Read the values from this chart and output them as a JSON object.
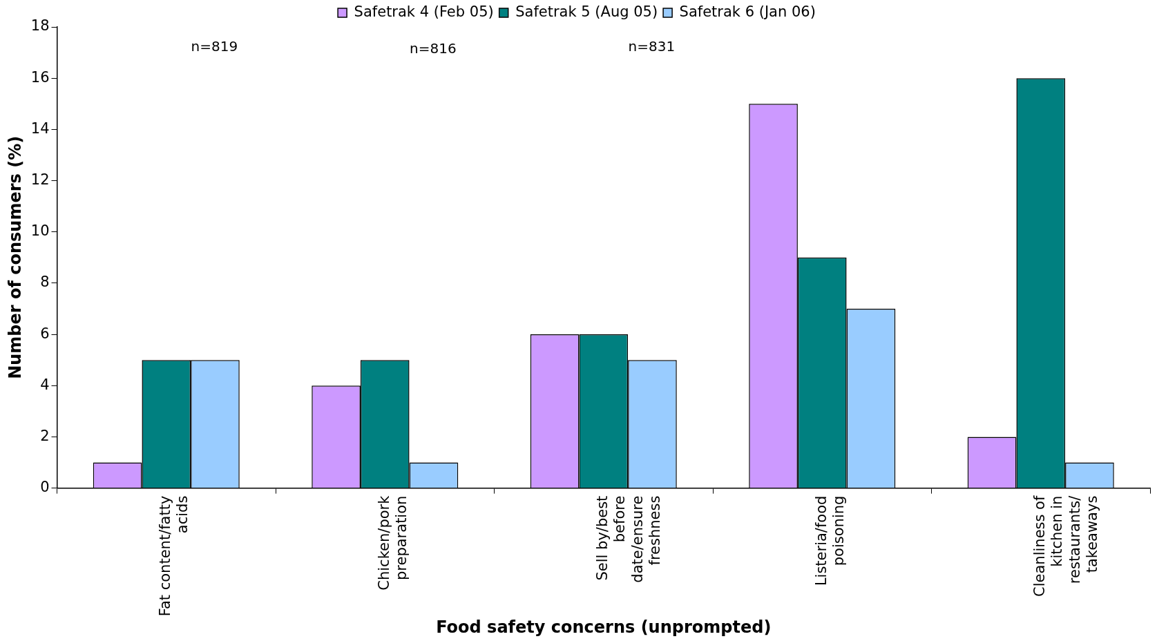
{
  "chart_data": {
    "type": "bar",
    "xlabel": "Food safety concerns (unprompted)",
    "ylabel": "Number of consumers (%)",
    "categories": [
      "Fat content/fatty acids",
      "Chicken/pork preparation",
      "Sell by/best before date/ensure freshness",
      "Listeria/food poisoning",
      "Cleanliness of kitchen in restaurants/ takeaways"
    ],
    "series": [
      {
        "name": "Safetrak 4 (Feb 05)",
        "color": "#cc99ff",
        "values": [
          1,
          4,
          6,
          15,
          2
        ]
      },
      {
        "name": "Safetrak 5 (Aug 05)",
        "color": "#008080",
        "values": [
          5,
          5,
          6,
          9,
          16
        ]
      },
      {
        "name": "Safetrak 6 (Jan 06)",
        "color": "#99ccff",
        "values": [
          5,
          1,
          5,
          7,
          1
        ]
      }
    ],
    "ylim": [
      0,
      18
    ],
    "yticks": [
      0,
      2,
      4,
      6,
      8,
      10,
      12,
      14,
      16,
      18
    ],
    "grid": false,
    "legend": "top",
    "annotations": [
      "n=819",
      "n=816",
      "n=831"
    ]
  }
}
